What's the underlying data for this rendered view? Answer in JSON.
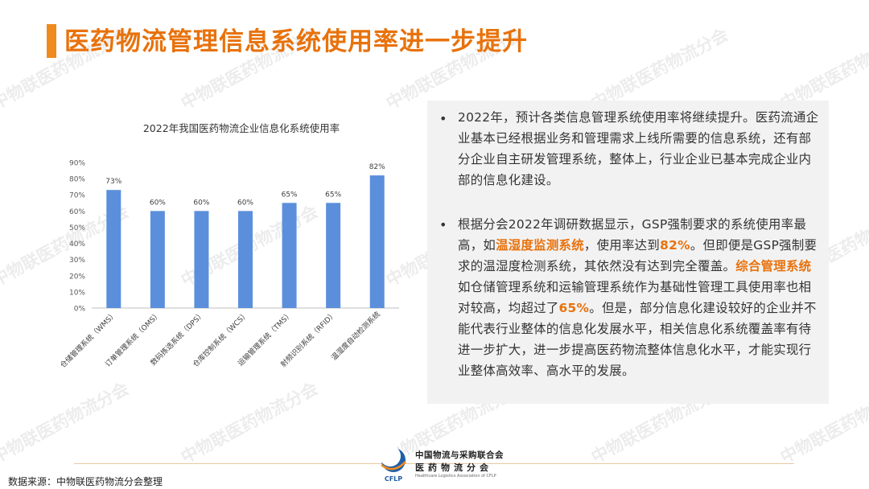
{
  "page": {
    "title": "医药物流管理信息系统使用率进一步提升",
    "watermark": "中物联医药物流分会"
  },
  "chart_data": {
    "type": "bar",
    "title": "2022年我国医药物流企业信息化系统使用率",
    "categories": [
      "仓储管理系统（WMS）",
      "订单管理系统（OMS）",
      "数码拣选系统（DPS）",
      "仓库控制系统（WCS）",
      "运输管理系统（TMS）",
      "射频识别系统（RFID）",
      "温湿度自动检测系统"
    ],
    "values": [
      73,
      60,
      60,
      60,
      65,
      65,
      82
    ],
    "value_labels": [
      "73%",
      "60%",
      "60%",
      "60%",
      "65%",
      "65%",
      "82%"
    ],
    "yticks": [
      "0%",
      "10%",
      "20%",
      "30%",
      "40%",
      "50%",
      "60%",
      "70%",
      "80%",
      "90%"
    ],
    "ylim": [
      0,
      90
    ],
    "bar_color": "#5b8fdb",
    "grid": false,
    "legend": "none"
  },
  "panel": {
    "bullet_symbol": "•",
    "p1": "2022年，预计各类信息管理系统使用率将继续提升。医药流通企业基本已经根据业务和管理需求上线所需要的信息系统，还有部分企业自主研发管理系统，整体上，行业企业已基本完成企业内部的信息化建设。",
    "p2_a": "根据分会2022年调研数据显示，GSP强制要求的系统使用率最高，如",
    "p2_b": "温湿度监测系统",
    "p2_c": "，使用率达到",
    "p2_d": "82%",
    "p2_e": "。但即便是GSP强制要求的温湿度检测系统，其依然没有达到完全覆盖。",
    "p2_f": "综合管理系统",
    "p2_g": "如仓储管理系统和运输管理系统作为基础性管理工具使用率也相对较高，均超过了",
    "p2_h": "65%",
    "p2_i": "。但是，部分信息化建设较好的企业并不能代表行业整体的信息化发展水平，相关信息化系统覆盖率有待进一步扩大，进一步提高医药物流整体信息化水平，才能实现行业整体高效率、高水平的发展。"
  },
  "footer": {
    "source": "数据来源：中物联医药物流分会整理",
    "org_name": "中国物流与采购联合会",
    "org_sub": "医药物流分会",
    "org_en": "Healthcare Logistics Association of CFLP",
    "logo_text": "CFLP",
    "accent_color": "#f08a1c"
  }
}
